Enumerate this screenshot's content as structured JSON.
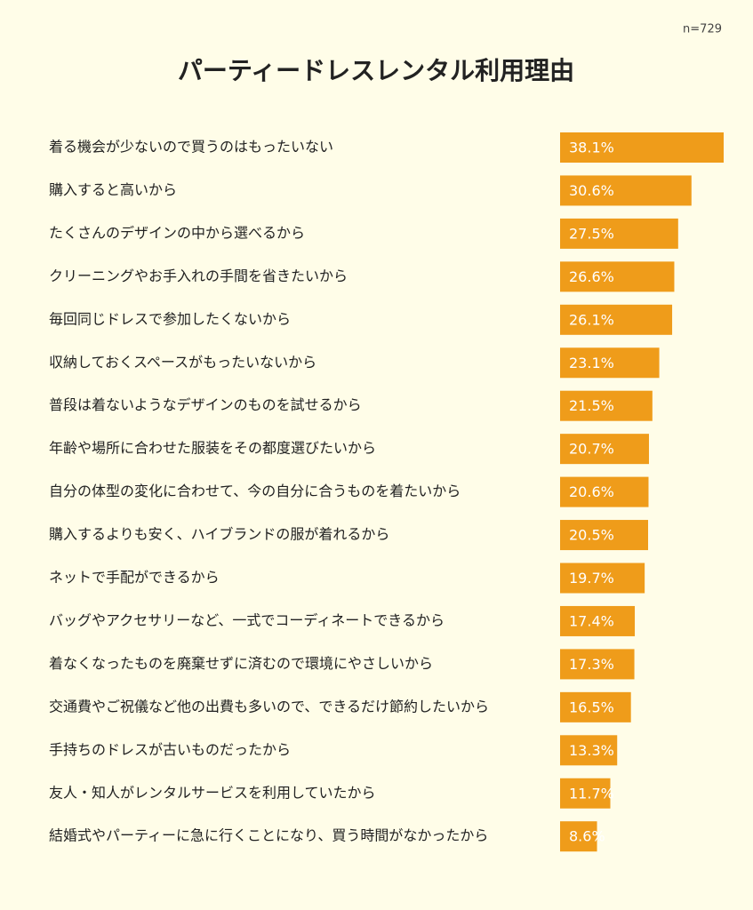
{
  "chart_data": {
    "type": "hbar",
    "title": "パーティードレスレンタル利用理由",
    "note": "n=729",
    "color": "#ef9c1a",
    "categories": [
      "着る機会が少ないので買うのはもったいない",
      "購入すると高いから",
      "たくさんのデザインの中から選べるから",
      "クリーニングやお手入れの手間を省きたいから",
      "毎回同じドレスで参加したくないから",
      "収納しておくスペースがもったいないから",
      "普段は着ないようなデザインのものを試せるから",
      "年齢や場所に合わせた服装をその都度選びたいから",
      "自分の体型の変化に合わせて、今の自分に合うものを着たいから",
      "購入するよりも安く、ハイブランドの服が着れるから",
      "ネットで手配ができるから",
      "バッグやアクセサリーなど、一式でコーディネートできるから",
      "着なくなったものを廃棄せずに済むので環境にやさしいから",
      "交通費やご祝儀など他の出費も多いので、できるだけ節約したいから",
      "手持ちのドレスが古いものだったから",
      "友人・知人がレンタルサービスを利用していたから",
      "結婚式やパーティーに急に行くことになり、買う時間がなかったから"
    ],
    "values": [
      38.1,
      30.6,
      27.5,
      26.6,
      26.1,
      23.1,
      21.5,
      20.7,
      20.6,
      20.5,
      19.7,
      17.4,
      17.3,
      16.5,
      13.3,
      11.7,
      8.6
    ],
    "value_labels": [
      "38.1%",
      "30.6%",
      "27.5%",
      "26.6%",
      "26.1%",
      "23.1%",
      "21.5%",
      "20.7%",
      "20.6%",
      "20.5%",
      "19.7%",
      "17.4%",
      "17.3%",
      "16.5%",
      "13.3%",
      "11.7%",
      "8.6%"
    ]
  }
}
